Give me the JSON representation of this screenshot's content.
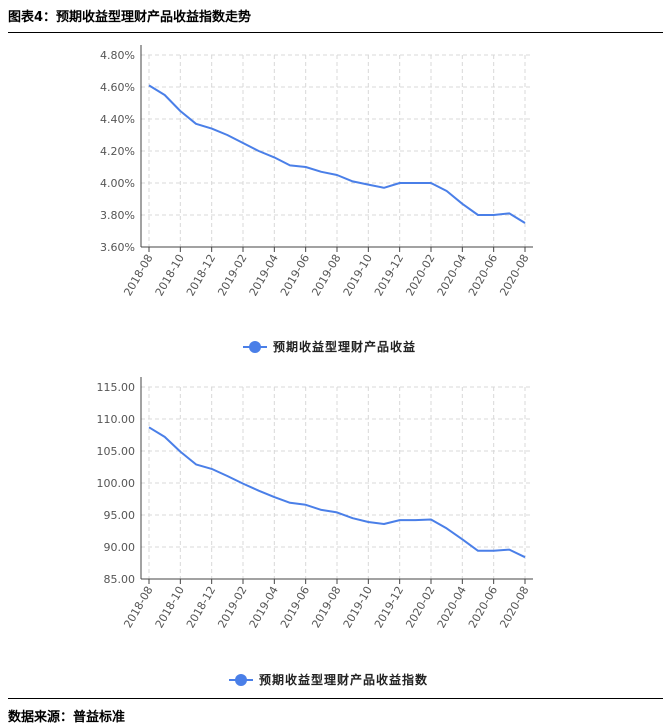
{
  "header": {
    "title": "图表4：预期收益型理财产品收益指数走势"
  },
  "footer": {
    "source": "数据来源：普益标准"
  },
  "colors": {
    "series": "#4a7fe8",
    "grid": "#d9d9d9",
    "axis": "#444444"
  },
  "chart_data": [
    {
      "type": "line",
      "x": [
        "2018-08",
        "2018-09",
        "2018-10",
        "2018-11",
        "2018-12",
        "2019-01",
        "2019-02",
        "2019-03",
        "2019-04",
        "2019-05",
        "2019-06",
        "2019-07",
        "2019-08",
        "2019-09",
        "2019-10",
        "2019-11",
        "2019-12",
        "2020-01",
        "2020-02",
        "2020-03",
        "2020-04",
        "2020-05",
        "2020-06",
        "2020-07",
        "2020-08"
      ],
      "x_tick_labels": [
        "2018-08",
        "2018-10",
        "2018-12",
        "2019-02",
        "2019-04",
        "2019-06",
        "2019-08",
        "2019-10",
        "2019-12",
        "2020-02",
        "2020-04",
        "2020-06",
        "2020-08"
      ],
      "y_tick_labels": [
        "3.60%",
        "3.80%",
        "4.00%",
        "4.20%",
        "4.40%",
        "4.60%",
        "4.80%"
      ],
      "series": [
        {
          "name": "预期收益型理财产品收益",
          "values": [
            4.61,
            4.55,
            4.45,
            4.37,
            4.34,
            4.3,
            4.25,
            4.2,
            4.16,
            4.11,
            4.1,
            4.07,
            4.05,
            4.01,
            3.99,
            3.97,
            4.0,
            4.0,
            4.0,
            3.95,
            3.87,
            3.8,
            3.8,
            3.81,
            3.75
          ]
        }
      ],
      "ylim": [
        3.6,
        4.8
      ],
      "yunit": "%",
      "grid": true,
      "legend_position": "bottom-center"
    },
    {
      "type": "line",
      "x": [
        "2018-08",
        "2018-09",
        "2018-10",
        "2018-11",
        "2018-12",
        "2019-01",
        "2019-02",
        "2019-03",
        "2019-04",
        "2019-05",
        "2019-06",
        "2019-07",
        "2019-08",
        "2019-09",
        "2019-10",
        "2019-11",
        "2019-12",
        "2020-01",
        "2020-02",
        "2020-03",
        "2020-04",
        "2020-05",
        "2020-06",
        "2020-07",
        "2020-08"
      ],
      "x_tick_labels": [
        "2018-08",
        "2018-10",
        "2018-12",
        "2019-02",
        "2019-04",
        "2019-06",
        "2019-08",
        "2019-10",
        "2019-12",
        "2020-02",
        "2020-04",
        "2020-06",
        "2020-08"
      ],
      "y_tick_labels": [
        "85.00",
        "90.00",
        "95.00",
        "100.00",
        "105.00",
        "110.00",
        "115.00"
      ],
      "series": [
        {
          "name": "预期收益型理财产品收益指数",
          "values": [
            108.7,
            107.2,
            104.9,
            102.9,
            102.2,
            101.1,
            99.9,
            98.8,
            97.8,
            96.9,
            96.6,
            95.8,
            95.4,
            94.5,
            93.9,
            93.6,
            94.2,
            94.2,
            94.3,
            92.9,
            91.2,
            89.4,
            89.4,
            89.6,
            88.4
          ]
        }
      ],
      "ylim": [
        85,
        115
      ],
      "grid": true,
      "legend_position": "bottom-center"
    }
  ]
}
